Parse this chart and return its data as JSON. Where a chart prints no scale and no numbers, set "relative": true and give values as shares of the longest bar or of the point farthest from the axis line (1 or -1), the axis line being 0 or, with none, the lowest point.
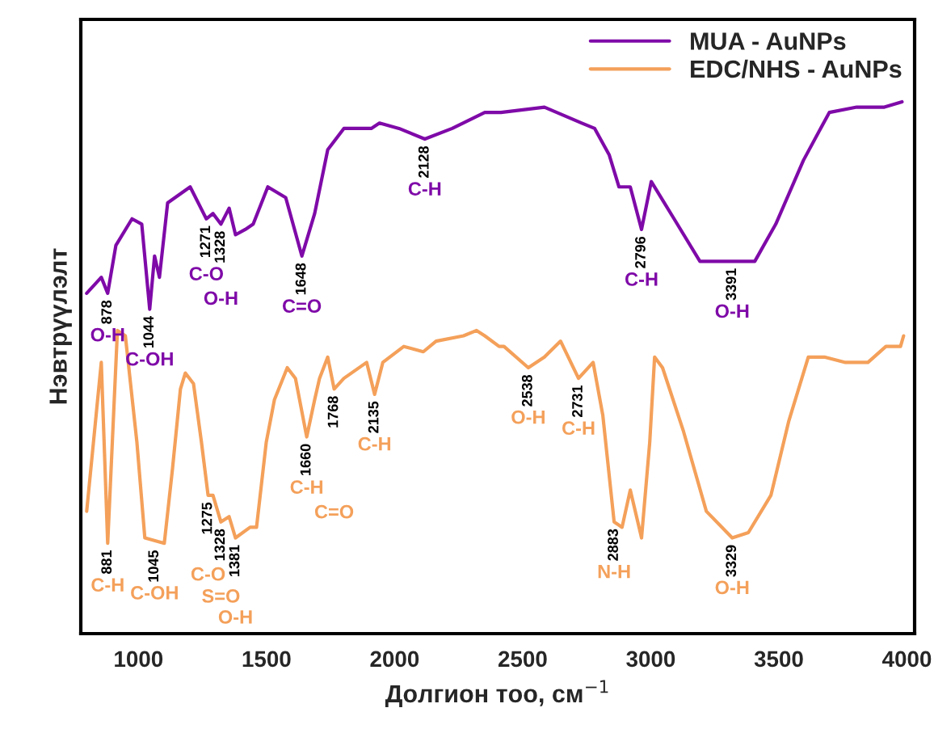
{
  "chart_data": {
    "type": "line",
    "relative": true,
    "xlabel": "Долгион тоо, см$^{−1}$",
    "ylabel": "Нэвтрүүлэлт",
    "xlim": [
      775,
      4030
    ],
    "xticks": [
      1000,
      1500,
      2000,
      2500,
      3000,
      3500,
      4000
    ],
    "legend": "top right",
    "grid": false,
    "series": [
      {
        "name": "MUA - AuNPs",
        "color": "#7f0aa8",
        "x": [
          798,
          855,
          880,
          912,
          975,
          1013,
          1044,
          1063,
          1082,
          1114,
          1202,
          1265,
          1291,
          1322,
          1354,
          1379,
          1417,
          1448,
          1505,
          1575,
          1638,
          1688,
          1739,
          1802,
          1909,
          1941,
          2017,
          2118,
          2225,
          2352,
          2415,
          2585,
          2731,
          2781,
          2838,
          2876,
          2920,
          2964,
          3002,
          3091,
          3192,
          3318,
          3406,
          3488,
          3596,
          3697,
          3804,
          3912,
          3981
        ],
        "values": [
          0.64,
          0.67,
          0.64,
          0.73,
          0.78,
          0.77,
          0.61,
          0.71,
          0.67,
          0.81,
          0.84,
          0.78,
          0.79,
          0.77,
          0.8,
          0.75,
          0.76,
          0.77,
          0.84,
          0.82,
          0.71,
          0.79,
          0.91,
          0.95,
          0.95,
          0.96,
          0.95,
          0.93,
          0.95,
          0.98,
          0.98,
          0.99,
          0.96,
          0.95,
          0.9,
          0.84,
          0.84,
          0.76,
          0.85,
          0.78,
          0.7,
          0.7,
          0.7,
          0.77,
          0.89,
          0.98,
          0.99,
          0.99,
          1.0
        ]
      },
      {
        "name": "EDC/NHS - AuNPs",
        "color": "#f4a05a",
        "x": [
          798,
          855,
          880,
          918,
          949,
          994,
          1025,
          1101,
          1133,
          1164,
          1183,
          1215,
          1246,
          1272,
          1291,
          1322,
          1354,
          1379,
          1436,
          1461,
          1499,
          1531,
          1581,
          1613,
          1657,
          1688,
          1707,
          1739,
          1764,
          1802,
          1891,
          1922,
          1954,
          2036,
          2112,
          2162,
          2269,
          2320,
          2352,
          2408,
          2427,
          2522,
          2585,
          2648,
          2718,
          2775,
          2813,
          2857,
          2888,
          2920,
          2964,
          2996,
          3015,
          3046,
          3128,
          3217,
          3318,
          3381,
          3469,
          3539,
          3615,
          3678,
          3760,
          3848,
          3918,
          3975,
          3987
        ],
        "values": [
          0.23,
          0.51,
          0.17,
          0.57,
          0.56,
          0.36,
          0.18,
          0.17,
          0.31,
          0.46,
          0.49,
          0.47,
          0.36,
          0.26,
          0.26,
          0.21,
          0.22,
          0.18,
          0.2,
          0.2,
          0.36,
          0.44,
          0.5,
          0.48,
          0.37,
          0.44,
          0.48,
          0.52,
          0.46,
          0.48,
          0.51,
          0.45,
          0.51,
          0.54,
          0.53,
          0.55,
          0.56,
          0.57,
          0.56,
          0.54,
          0.54,
          0.5,
          0.52,
          0.55,
          0.48,
          0.51,
          0.41,
          0.21,
          0.2,
          0.27,
          0.18,
          0.36,
          0.52,
          0.5,
          0.38,
          0.23,
          0.18,
          0.19,
          0.26,
          0.4,
          0.52,
          0.52,
          0.51,
          0.51,
          0.54,
          0.54,
          0.56
        ]
      }
    ],
    "annotations": [
      {
        "text": "878",
        "x": 880,
        "y": 0.64
      },
      "O-H",
      {
        "text": "1044",
        "x": 1044,
        "y": 0.61
      },
      "C-OH",
      {
        "text": "1271",
        "x": 1265,
        "y": 0.78
      },
      "C-O",
      {
        "text": "1328",
        "x": 1322,
        "y": 0.77
      },
      "O-H",
      {
        "text": "1648",
        "x": 1638,
        "y": 0.71
      },
      "C=O",
      {
        "text": "2128",
        "x": 2118,
        "y": 0.93
      },
      "C-H",
      {
        "text": "2796",
        "x": 2964,
        "y": 0.76
      },
      "C-H",
      {
        "text": "3391",
        "x": 3318,
        "y": 0.7
      },
      "O-H",
      {
        "text": "881",
        "x": 880,
        "y": 0.17
      },
      "C-H",
      {
        "text": "1045",
        "x": 1063,
        "y": 0.17
      },
      "C-OH",
      {
        "text": "1275",
        "x": 1272,
        "y": 0.26
      },
      "C-O",
      {
        "text": "1328",
        "x": 1322,
        "y": 0.21
      },
      "S=O",
      {
        "text": "1381",
        "x": 1379,
        "y": 0.18
      },
      "O-H",
      {
        "text": "1660",
        "x": 1657,
        "y": 0.37
      },
      "C-H",
      {
        "text": "1768",
        "x": 1764,
        "y": 0.46
      },
      "C=O",
      {
        "text": "2135",
        "x": 1922,
        "y": 0.45
      },
      "C-H",
      {
        "text": "2538",
        "x": 2522,
        "y": 0.5
      },
      "O-H",
      {
        "text": "2731",
        "x": 2718,
        "y": 0.48
      },
      "C-H",
      {
        "text": "2883",
        "x": 2857,
        "y": 0.21
      },
      "N-H",
      {
        "text": "3329",
        "x": 3318,
        "y": 0.18
      },
      "O-H"
    ]
  }
}
